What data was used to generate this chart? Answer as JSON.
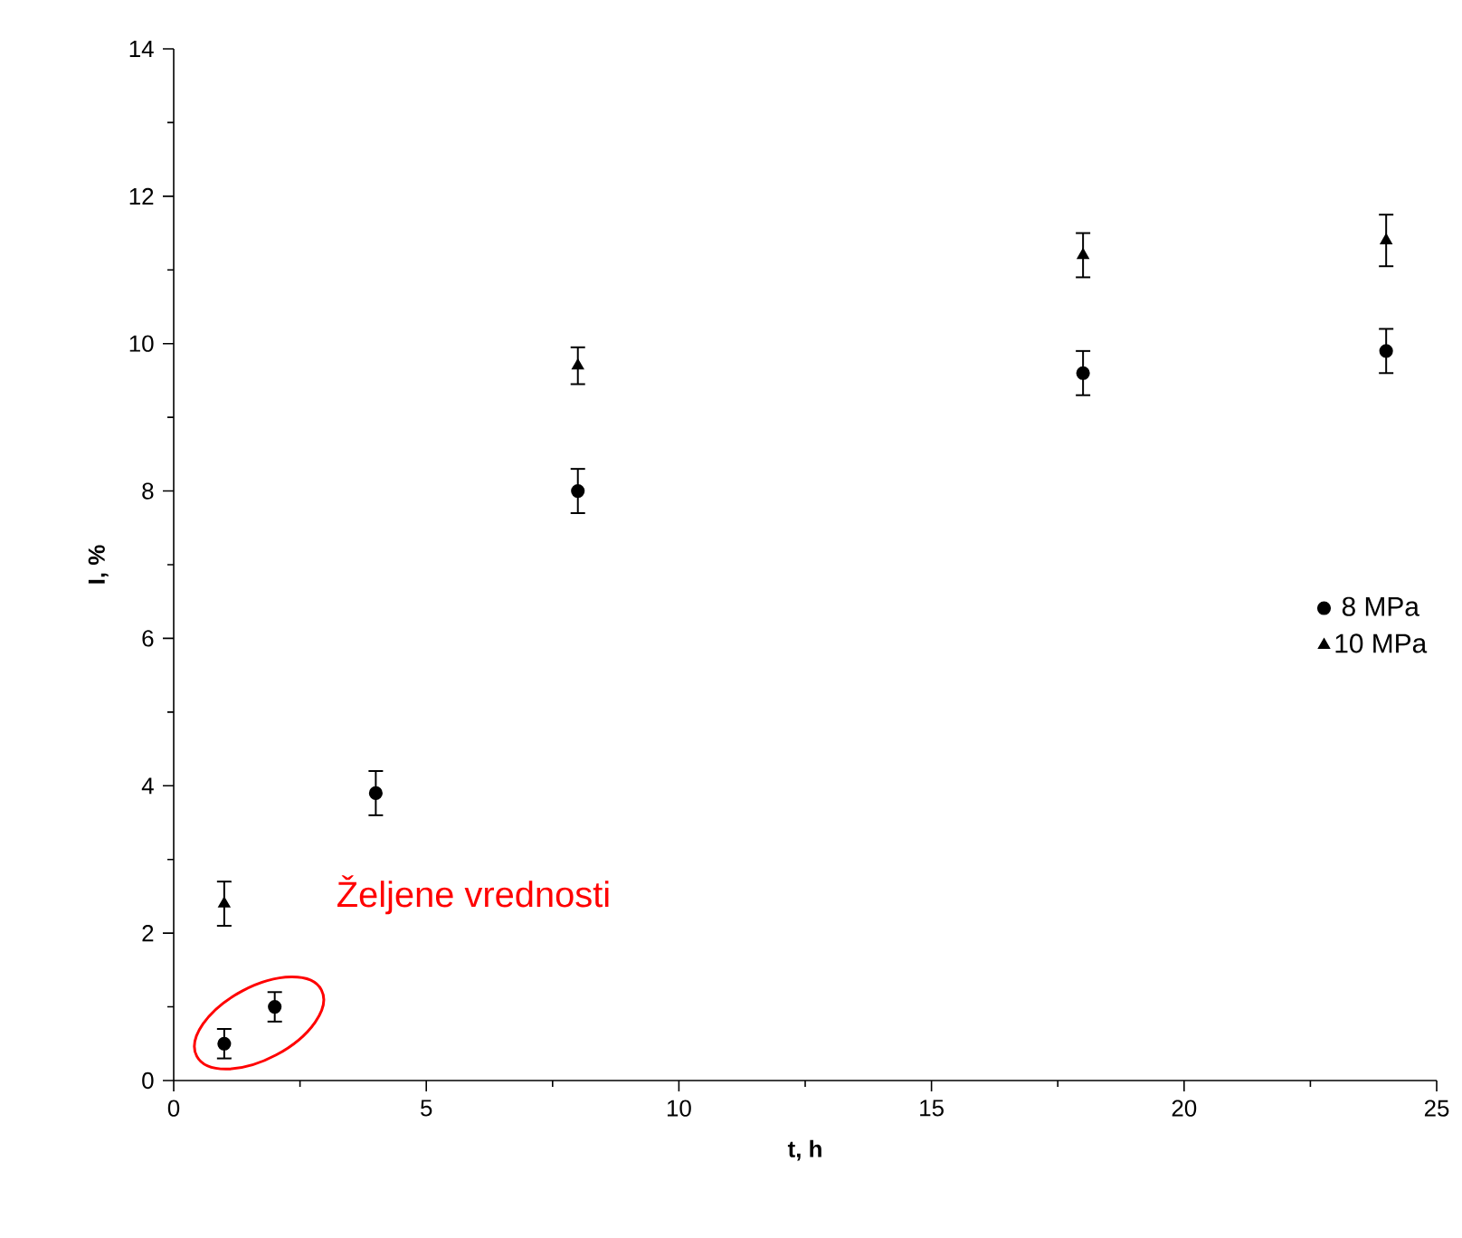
{
  "chart_data": {
    "type": "scatter",
    "xlabel": "t, h",
    "ylabel": "I, %",
    "xlim": [
      0,
      25
    ],
    "ylim": [
      0,
      14
    ],
    "xticks": [
      0,
      {
        "value": 2.5,
        "label": null
      },
      5,
      {
        "value": 7.5,
        "label": null
      },
      10,
      {
        "value": 12.5,
        "label": null
      },
      15,
      {
        "value": 17.5,
        "label": null
      },
      20,
      {
        "value": 22.5,
        "label": null
      },
      25
    ],
    "yticks": [
      0,
      {
        "value": 1,
        "label": null
      },
      2,
      {
        "value": 3,
        "label": null
      },
      4,
      {
        "value": 5,
        "label": null
      },
      6,
      {
        "value": 7,
        "label": null
      },
      8,
      {
        "value": 9,
        "label": null
      },
      10,
      {
        "value": 11,
        "label": null
      },
      12,
      {
        "value": 13,
        "label": null
      },
      14
    ],
    "legend": "right",
    "grid": false,
    "series": [
      {
        "name": "8 MPa",
        "color": "#000000",
        "marker": "circle",
        "x": [
          1,
          2,
          4,
          8,
          18,
          24
        ],
        "values": [
          0.5,
          1.0,
          3.9,
          8.0,
          9.6,
          9.9
        ],
        "errors": [
          0.2,
          0.2,
          0.3,
          0.3,
          0.3,
          0.3
        ]
      },
      {
        "name": "10 MPa",
        "color": "#000000",
        "marker": "triangle",
        "x": [
          1,
          8,
          18,
          24
        ],
        "values": [
          2.4,
          9.7,
          11.2,
          11.4
        ],
        "errors": [
          0.3,
          0.25,
          0.3,
          0.35
        ]
      }
    ],
    "annotations": [
      "Željene vrednosti"
    ]
  }
}
